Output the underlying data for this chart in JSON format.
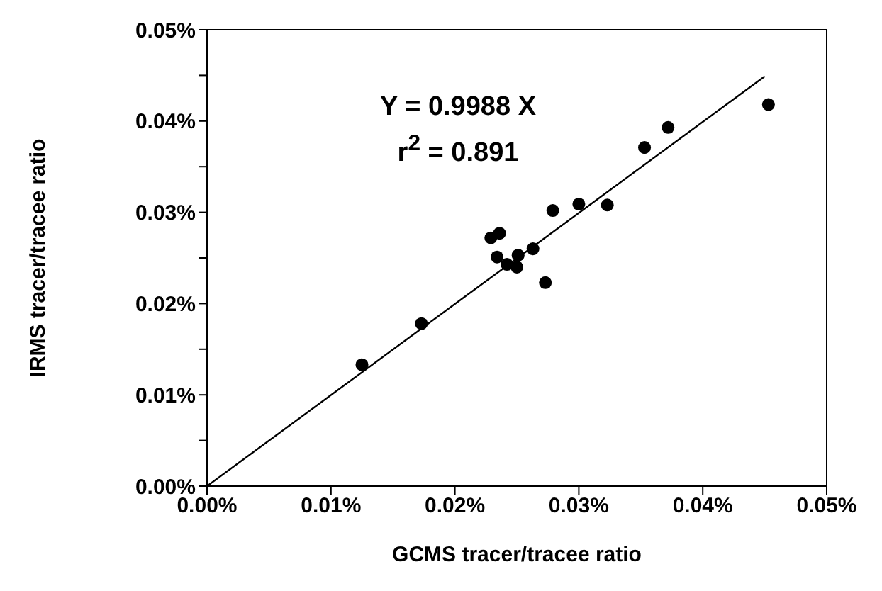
{
  "chart_data": {
    "type": "scatter",
    "xlabel": "GCMS tracer/tracee ratio",
    "ylabel": "IRMS tracer/tracee ratio",
    "annotations": [
      "Y = 0.9988 X",
      "r$^{2}$ = 0.891"
    ],
    "marker": "circle",
    "grid": false,
    "xlim": [
      0,
      0.05
    ],
    "ylim": [
      0,
      0.05
    ],
    "xticks": [
      {
        "value": 0,
        "label": "0.00%"
      },
      {
        "value": 0.01,
        "label": "0.01%"
      },
      {
        "value": 0.02,
        "label": "0.02%"
      },
      {
        "value": 0.03,
        "label": "0.03%"
      },
      {
        "value": 0.04,
        "label": "0.04%"
      },
      {
        "value": 0.05,
        "label": "0.05%"
      }
    ],
    "yticks": [
      {
        "value": 0,
        "label": "0.00%"
      },
      {
        "value": 0.005,
        "label": null
      },
      {
        "value": 0.01,
        "label": "0.01%"
      },
      {
        "value": 0.015,
        "label": null
      },
      {
        "value": 0.02,
        "label": "0.02%"
      },
      {
        "value": 0.025,
        "label": null
      },
      {
        "value": 0.03,
        "label": "0.03%"
      },
      {
        "value": 0.035,
        "label": null
      },
      {
        "value": 0.04,
        "label": "0.04%"
      },
      {
        "value": 0.045,
        "label": null
      },
      {
        "value": 0.05,
        "label": "0.05%"
      }
    ],
    "series": [
      {
        "color": "#000000",
        "x": [
          0.0125,
          0.0173,
          0.0229,
          0.0236,
          0.0234,
          0.0242,
          0.0251,
          0.025,
          0.0263,
          0.0273,
          0.0279,
          0.03,
          0.0323,
          0.0353,
          0.0372,
          0.0453
        ],
        "values": [
          0.0133,
          0.0178,
          0.0272,
          0.0277,
          0.0251,
          0.0243,
          0.0253,
          0.024,
          0.026,
          0.0223,
          0.0302,
          0.0309,
          0.0308,
          0.0371,
          0.0393,
          0.0418
        ]
      },
      {
        "type": "line",
        "color": "#000000",
        "marker": "none",
        "x": [
          0,
          0.045
        ],
        "values": [
          0,
          0.0449
        ]
      }
    ]
  }
}
